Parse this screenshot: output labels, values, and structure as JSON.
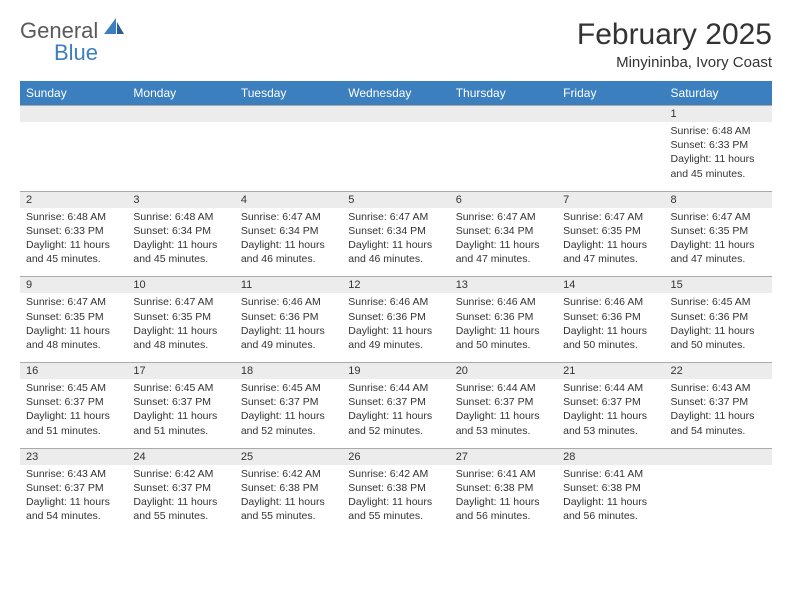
{
  "logo": {
    "text1": "General",
    "text2": "Blue"
  },
  "title": "February 2025",
  "location": "Minyininba, Ivory Coast",
  "colors": {
    "header_bg": "#3b7fbf",
    "header_text": "#ffffff",
    "date_bg": "#ececec",
    "border": "#aaaaaa",
    "text": "#333333",
    "logo_gray": "#5a5a5a",
    "logo_blue": "#3b7fbf"
  },
  "day_names": [
    "Sunday",
    "Monday",
    "Tuesday",
    "Wednesday",
    "Thursday",
    "Friday",
    "Saturday"
  ],
  "weeks": [
    {
      "dates": [
        "",
        "",
        "",
        "",
        "",
        "",
        "1"
      ],
      "cells": [
        "",
        "",
        "",
        "",
        "",
        "",
        "Sunrise: 6:48 AM\nSunset: 6:33 PM\nDaylight: 11 hours and 45 minutes."
      ]
    },
    {
      "dates": [
        "2",
        "3",
        "4",
        "5",
        "6",
        "7",
        "8"
      ],
      "cells": [
        "Sunrise: 6:48 AM\nSunset: 6:33 PM\nDaylight: 11 hours and 45 minutes.",
        "Sunrise: 6:48 AM\nSunset: 6:34 PM\nDaylight: 11 hours and 45 minutes.",
        "Sunrise: 6:47 AM\nSunset: 6:34 PM\nDaylight: 11 hours and 46 minutes.",
        "Sunrise: 6:47 AM\nSunset: 6:34 PM\nDaylight: 11 hours and 46 minutes.",
        "Sunrise: 6:47 AM\nSunset: 6:34 PM\nDaylight: 11 hours and 47 minutes.",
        "Sunrise: 6:47 AM\nSunset: 6:35 PM\nDaylight: 11 hours and 47 minutes.",
        "Sunrise: 6:47 AM\nSunset: 6:35 PM\nDaylight: 11 hours and 47 minutes."
      ]
    },
    {
      "dates": [
        "9",
        "10",
        "11",
        "12",
        "13",
        "14",
        "15"
      ],
      "cells": [
        "Sunrise: 6:47 AM\nSunset: 6:35 PM\nDaylight: 11 hours and 48 minutes.",
        "Sunrise: 6:47 AM\nSunset: 6:35 PM\nDaylight: 11 hours and 48 minutes.",
        "Sunrise: 6:46 AM\nSunset: 6:36 PM\nDaylight: 11 hours and 49 minutes.",
        "Sunrise: 6:46 AM\nSunset: 6:36 PM\nDaylight: 11 hours and 49 minutes.",
        "Sunrise: 6:46 AM\nSunset: 6:36 PM\nDaylight: 11 hours and 50 minutes.",
        "Sunrise: 6:46 AM\nSunset: 6:36 PM\nDaylight: 11 hours and 50 minutes.",
        "Sunrise: 6:45 AM\nSunset: 6:36 PM\nDaylight: 11 hours and 50 minutes."
      ]
    },
    {
      "dates": [
        "16",
        "17",
        "18",
        "19",
        "20",
        "21",
        "22"
      ],
      "cells": [
        "Sunrise: 6:45 AM\nSunset: 6:37 PM\nDaylight: 11 hours and 51 minutes.",
        "Sunrise: 6:45 AM\nSunset: 6:37 PM\nDaylight: 11 hours and 51 minutes.",
        "Sunrise: 6:45 AM\nSunset: 6:37 PM\nDaylight: 11 hours and 52 minutes.",
        "Sunrise: 6:44 AM\nSunset: 6:37 PM\nDaylight: 11 hours and 52 minutes.",
        "Sunrise: 6:44 AM\nSunset: 6:37 PM\nDaylight: 11 hours and 53 minutes.",
        "Sunrise: 6:44 AM\nSunset: 6:37 PM\nDaylight: 11 hours and 53 minutes.",
        "Sunrise: 6:43 AM\nSunset: 6:37 PM\nDaylight: 11 hours and 54 minutes."
      ]
    },
    {
      "dates": [
        "23",
        "24",
        "25",
        "26",
        "27",
        "28",
        ""
      ],
      "cells": [
        "Sunrise: 6:43 AM\nSunset: 6:37 PM\nDaylight: 11 hours and 54 minutes.",
        "Sunrise: 6:42 AM\nSunset: 6:37 PM\nDaylight: 11 hours and 55 minutes.",
        "Sunrise: 6:42 AM\nSunset: 6:38 PM\nDaylight: 11 hours and 55 minutes.",
        "Sunrise: 6:42 AM\nSunset: 6:38 PM\nDaylight: 11 hours and 55 minutes.",
        "Sunrise: 6:41 AM\nSunset: 6:38 PM\nDaylight: 11 hours and 56 minutes.",
        "Sunrise: 6:41 AM\nSunset: 6:38 PM\nDaylight: 11 hours and 56 minutes.",
        ""
      ]
    }
  ]
}
